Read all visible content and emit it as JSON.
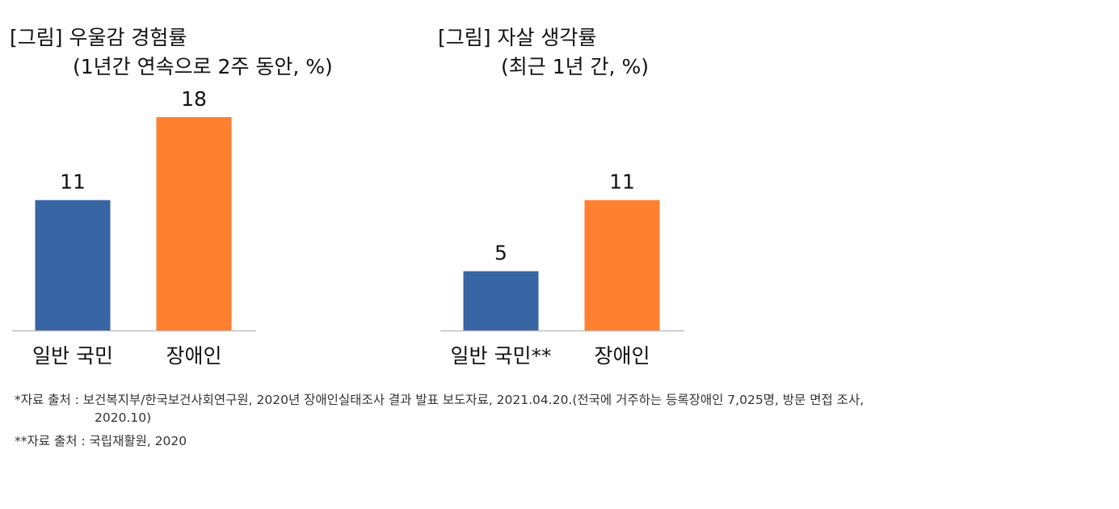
{
  "chart_data": [
    {
      "type": "bar",
      "title": "[그림] 우울감 경험률",
      "subtitle": "(1년간 연속으로 2주 동안, %)",
      "categories": [
        "일반 국민",
        "장애인"
      ],
      "values": [
        11,
        18
      ],
      "data_labels": [
        "11",
        "18"
      ],
      "colors": [
        "#3865A3",
        "#FF8030"
      ],
      "ylim": [
        0,
        18
      ],
      "grid": false,
      "legend": "none"
    },
    {
      "type": "bar",
      "title": "[그림] 자살 생각률",
      "subtitle": "(최근 1년 간, %)",
      "categories": [
        "일반 국민**",
        "장애인"
      ],
      "values": [
        5,
        11
      ],
      "data_labels": [
        "5",
        "11"
      ],
      "colors": [
        "#3865A3",
        "#FF8030"
      ],
      "ylim": [
        0,
        18
      ],
      "grid": false,
      "legend": "none"
    }
  ],
  "footnotes": {
    "line1": "*자료 출처 : 보건복지부/한국보건사회연구원, 2020년 장애인실태조사 결과 발표 보도자료, 2021.04.20.(전국에 거주하는 등록장애인 7,025명, 방문 면접 조사,",
    "line2": "2020.10)",
    "line3": "**자료 출처 : 국립재활원, 2020"
  }
}
